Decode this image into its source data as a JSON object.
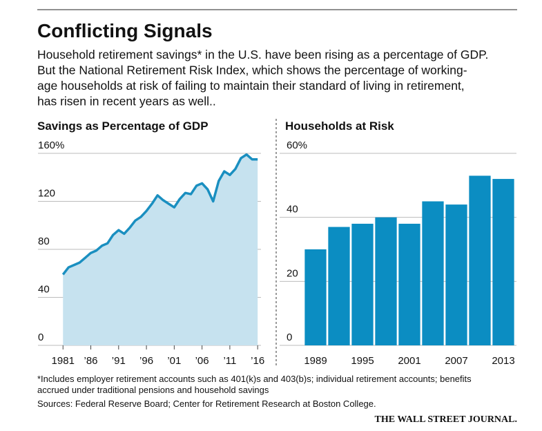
{
  "header": {
    "title": "Conflicting Signals",
    "subtitle": [
      "Household retirement savings* in the U.S. have been rising as a percentage of GDP.",
      "But the National Retirement Risk Index, which shows the percentage of working-",
      "age households at risk of failing to maintain their standard of living in retirement,",
      "has risen in recent years as well.."
    ]
  },
  "chart_data": [
    {
      "type": "line",
      "title": "Savings as Percentage of GDP",
      "x": [
        1981,
        1982,
        1983,
        1984,
        1985,
        1986,
        1987,
        1988,
        1989,
        1990,
        1991,
        1992,
        1993,
        1994,
        1995,
        1996,
        1997,
        1998,
        1999,
        2000,
        2001,
        2002,
        2003,
        2004,
        2005,
        2006,
        2007,
        2008,
        2009,
        2010,
        2011,
        2012,
        2013,
        2014,
        2015,
        2016
      ],
      "values": [
        59,
        65,
        67,
        69,
        73,
        77,
        79,
        83,
        85,
        92,
        96,
        93,
        98,
        104,
        107,
        112,
        118,
        125,
        121,
        118,
        115,
        122,
        127,
        126,
        133,
        135,
        130,
        120,
        137,
        145,
        142,
        147,
        156,
        159,
        155,
        155
      ],
      "color": "#1a8fc0",
      "fill_color": "#c6e2ef",
      "xlim": [
        1976.5,
        2016.6
      ],
      "ylim": [
        0,
        160
      ],
      "xticks": [
        1981,
        {
          "value": 1986,
          "label": "’86"
        },
        {
          "value": 1991,
          "label": "’91"
        },
        {
          "value": 1996,
          "label": "’96"
        },
        {
          "value": 2001,
          "label": "’01"
        },
        {
          "value": 2006,
          "label": "’06"
        },
        {
          "value": 2011,
          "label": "’11"
        },
        {
          "value": 2016,
          "label": "’16"
        }
      ],
      "yticks": [
        0,
        40,
        80,
        120,
        {
          "value": 160,
          "label": "160%"
        }
      ],
      "grid": true
    },
    {
      "type": "bar",
      "title": "Households at Risk",
      "categories": [
        "1989",
        null,
        "1995",
        null,
        "2001",
        null,
        "2007",
        null,
        "2013"
      ],
      "values": [
        30,
        37,
        38,
        40,
        38,
        45,
        44,
        53,
        52
      ],
      "color": "#0b8dc2",
      "ylim": [
        0,
        60
      ],
      "yticks": [
        0,
        20,
        40,
        {
          "value": 60,
          "label": "60%"
        }
      ],
      "grid": true
    }
  ],
  "footnote": [
    "*Includes employer retirement accounts such as 401(k)s and 403(b)s; individual retirement accounts; benefits",
    "accrued under traditional pensions and household savings"
  ],
  "source": "Sources: Federal Reserve Board; Center for Retirement Research at Boston College.",
  "logo": "THE WALL STREET JOURNAL."
}
